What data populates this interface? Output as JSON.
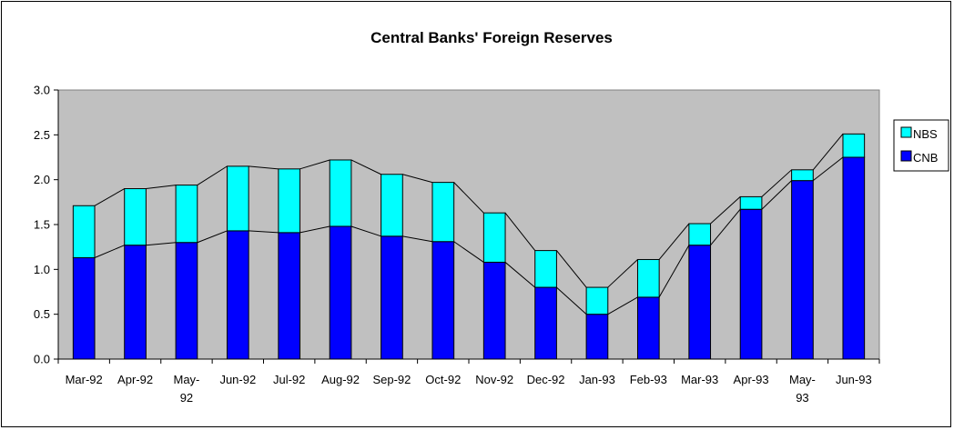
{
  "chart_data": {
    "type": "bar",
    "stacked": true,
    "title": "Central Banks' Foreign Reserves",
    "xlabel": "",
    "ylabel": "",
    "ylim": [
      0,
      3.0
    ],
    "yticks": [
      "0.0",
      "0.5",
      "1.0",
      "1.5",
      "2.0",
      "2.5",
      "3.0"
    ],
    "categories": [
      [
        "Mar-92"
      ],
      [
        "Apr-92"
      ],
      [
        "May-",
        "92"
      ],
      [
        "Jun-92"
      ],
      [
        "Jul-92"
      ],
      [
        "Aug-92"
      ],
      [
        "Sep-92"
      ],
      [
        "Oct-92"
      ],
      [
        "Nov-92"
      ],
      [
        "Dec-92"
      ],
      [
        "Jan-93"
      ],
      [
        "Feb-93"
      ],
      [
        "Mar-93"
      ],
      [
        "Apr-93"
      ],
      [
        "May-",
        "93"
      ],
      [
        "Jun-93"
      ]
    ],
    "series": [
      {
        "name": "CNB",
        "color": "#0000ff",
        "values": [
          1.13,
          1.27,
          1.3,
          1.43,
          1.41,
          1.48,
          1.37,
          1.31,
          1.08,
          0.8,
          0.5,
          0.69,
          1.27,
          1.67,
          1.99,
          2.25
        ]
      },
      {
        "name": "NBS",
        "color": "#00ffff",
        "values": [
          0.58,
          0.63,
          0.64,
          0.72,
          0.71,
          0.74,
          0.69,
          0.66,
          0.55,
          0.41,
          0.3,
          0.42,
          0.24,
          0.14,
          0.12,
          0.26
        ]
      }
    ],
    "legend": {
      "position": "right",
      "order": [
        "NBS",
        "CNB"
      ]
    },
    "plot_background": "#c0c0c0",
    "connector_lines": true,
    "grid": false
  }
}
